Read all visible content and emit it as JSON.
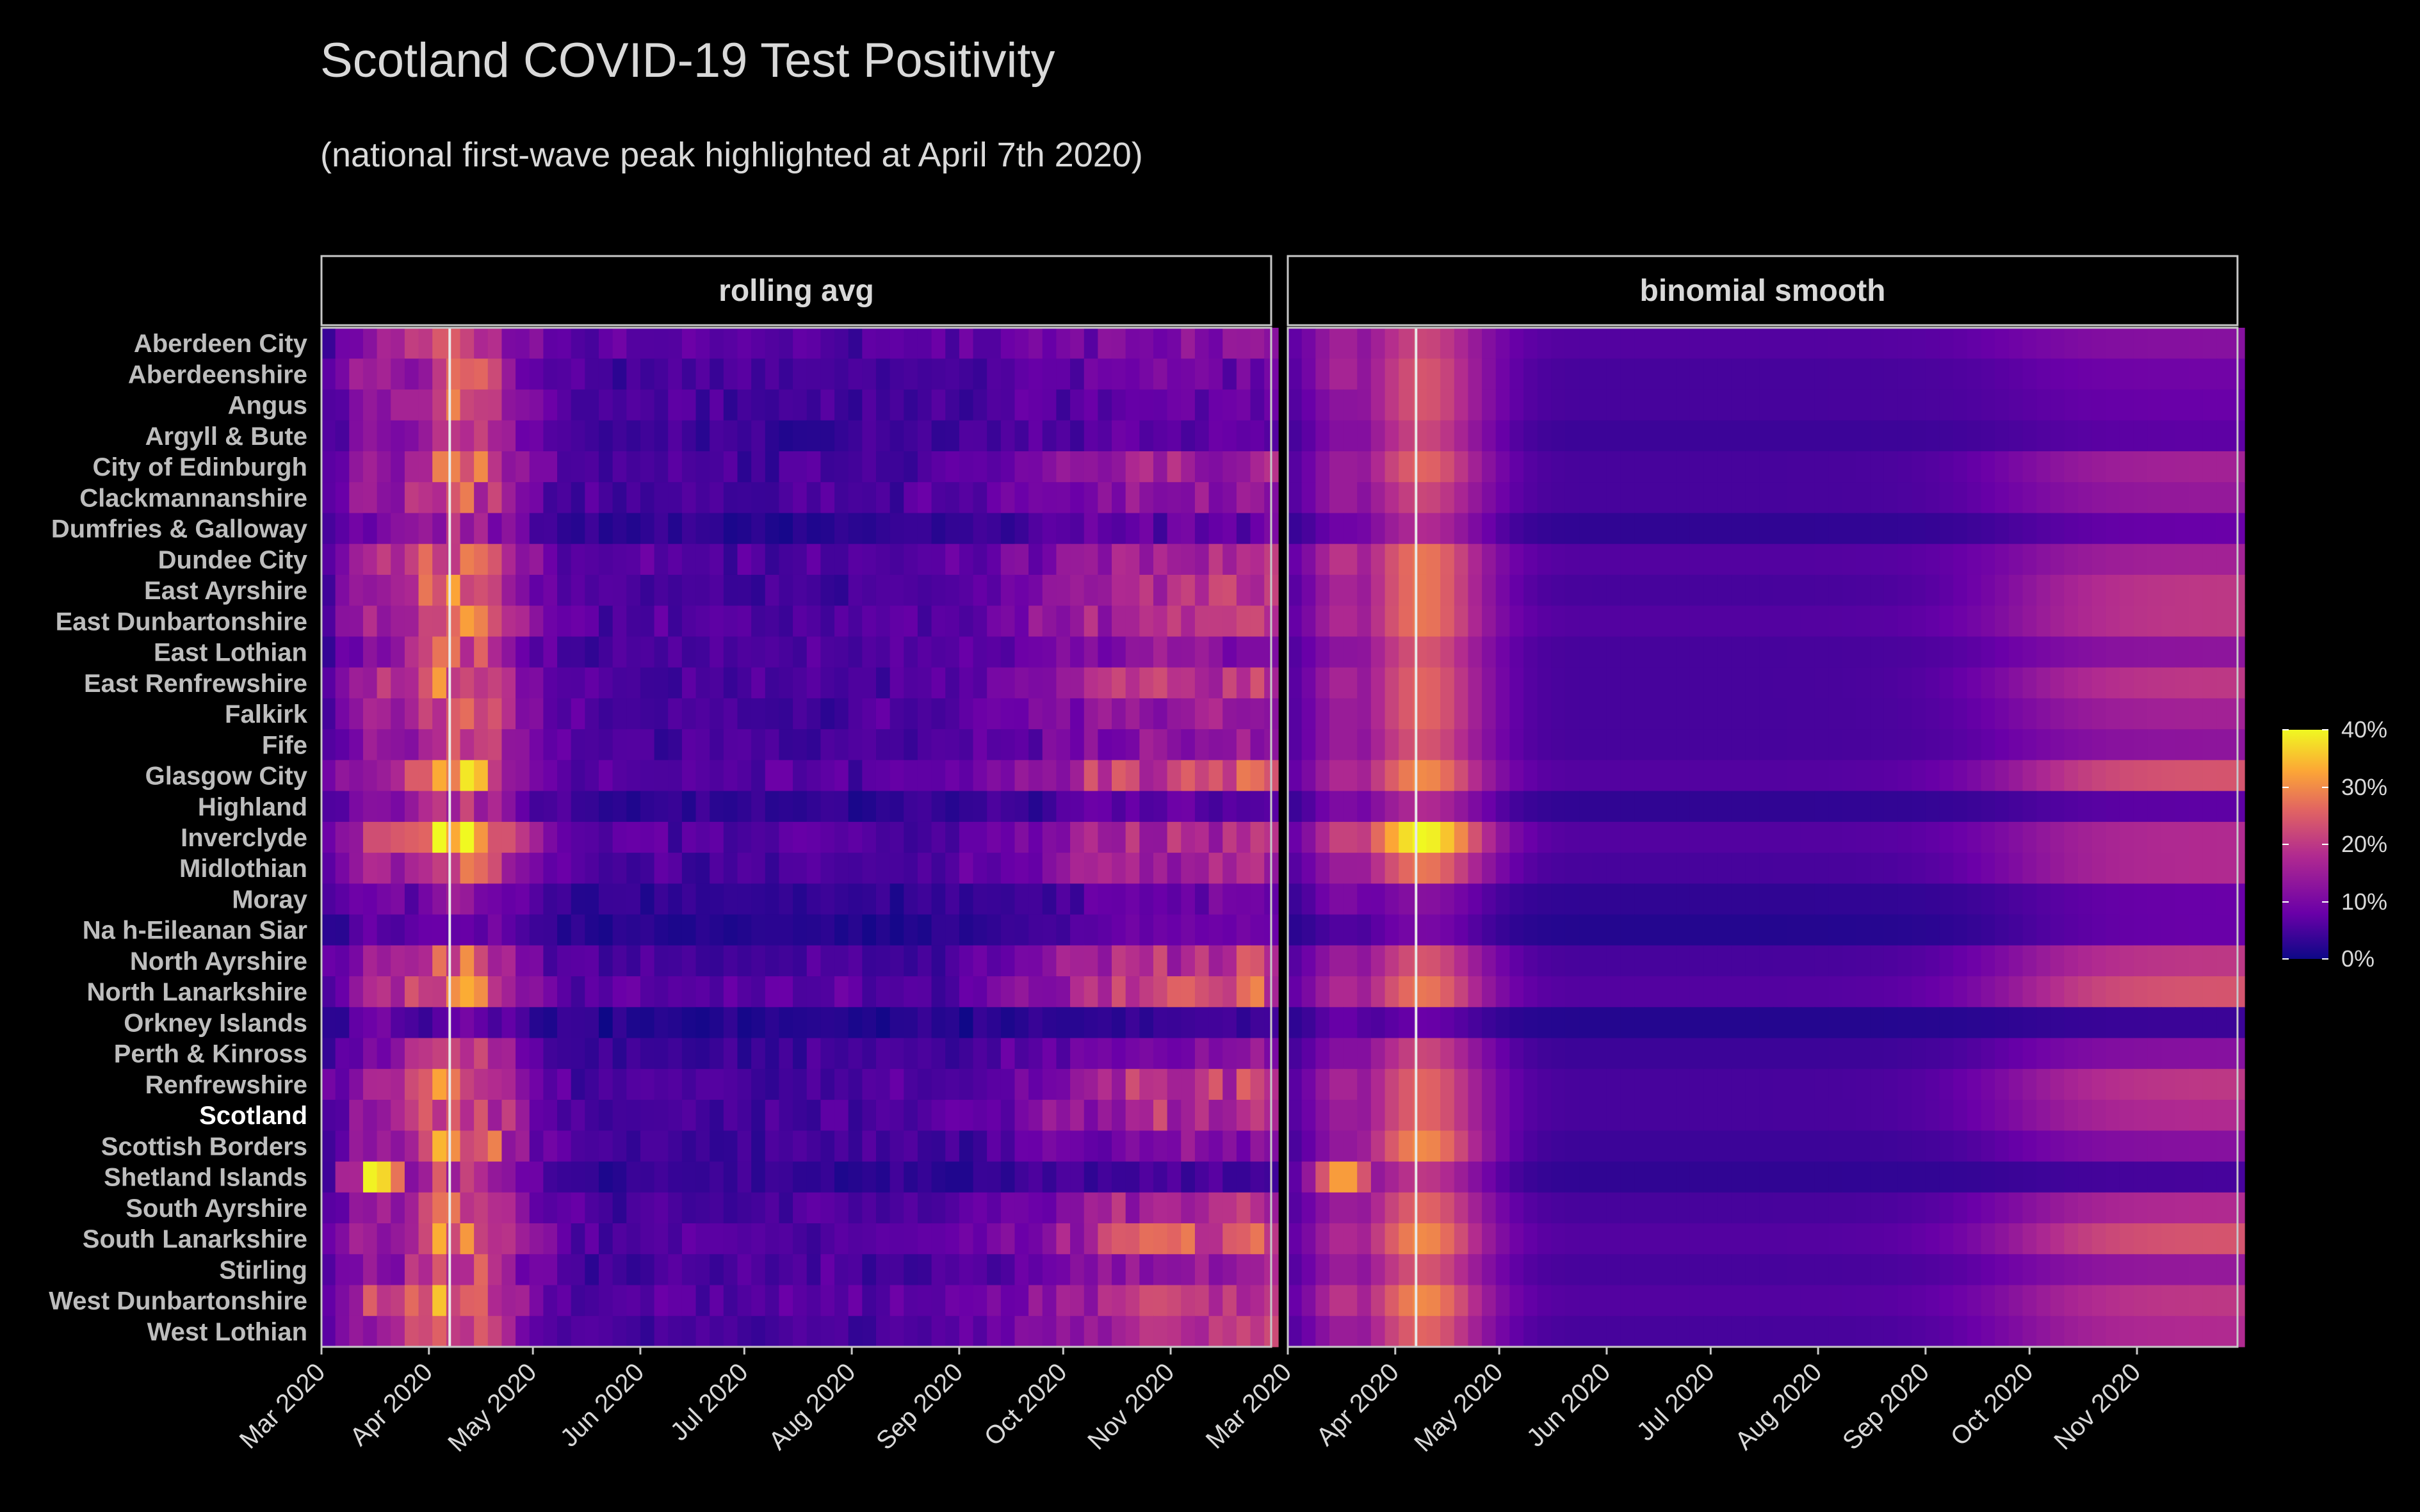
{
  "chart_data": {
    "type": "heatmap",
    "title": "Scotland COVID-19 Test Positivity",
    "subtitle": "(national first-wave peak highlighted at April 7th 2020)",
    "panels": [
      "rolling avg",
      "binomial smooth"
    ],
    "x_ticks": [
      "Mar 2020",
      "Apr 2020",
      "May 2020",
      "Jun 2020",
      "Jul 2020",
      "Aug 2020",
      "Sep 2020",
      "Oct 2020",
      "Nov 2020"
    ],
    "x_range": [
      "2020-03-01",
      "2020-11-30"
    ],
    "highlight_date": "2020-04-07",
    "highlight_row": "Scotland",
    "legend": {
      "labels": [
        "40%",
        "30%",
        "20%",
        "10%",
        "0%"
      ],
      "range": [
        0,
        40
      ],
      "colors": [
        "#0d0887",
        "#6a00a8",
        "#b12a90",
        "#e16462",
        "#fca636",
        "#f0f921"
      ]
    },
    "series": [
      {
        "name": "Aberdeen City",
        "values": {
          "early": 10,
          "peak": 22,
          "summer": 6,
          "autumn": 12
        }
      },
      {
        "name": "Aberdeenshire",
        "values": {
          "early": 12,
          "peak": 24,
          "summer": 5,
          "autumn": 9
        }
      },
      {
        "name": "Angus",
        "values": {
          "early": 8,
          "peak": 24,
          "summer": 5,
          "autumn": 8
        }
      },
      {
        "name": "Argyll & Bute",
        "values": {
          "early": 8,
          "peak": 22,
          "summer": 4,
          "autumn": 7
        }
      },
      {
        "name": "City of Edinburgh",
        "values": {
          "early": 10,
          "peak": 26,
          "summer": 5,
          "autumn": 16
        }
      },
      {
        "name": "Clackmannanshire",
        "values": {
          "early": 10,
          "peak": 22,
          "summer": 5,
          "autumn": 14
        }
      },
      {
        "name": "Dumfries & Galloway",
        "values": {
          "early": 6,
          "peak": 18,
          "summer": 3,
          "autumn": 8
        }
      },
      {
        "name": "Dundee City",
        "values": {
          "early": 14,
          "peak": 28,
          "summer": 6,
          "autumn": 16
        }
      },
      {
        "name": "East Ayrshire",
        "values": {
          "early": 12,
          "peak": 28,
          "summer": 5,
          "autumn": 20
        }
      },
      {
        "name": "East Dunbartonshire",
        "values": {
          "early": 12,
          "peak": 28,
          "summer": 6,
          "autumn": 20
        }
      },
      {
        "name": "East Lothian",
        "values": {
          "early": 8,
          "peak": 24,
          "summer": 5,
          "autumn": 13
        }
      },
      {
        "name": "East Renfrewshire",
        "values": {
          "early": 12,
          "peak": 26,
          "summer": 5,
          "autumn": 20
        }
      },
      {
        "name": "Falkirk",
        "values": {
          "early": 10,
          "peak": 26,
          "summer": 5,
          "autumn": 16
        }
      },
      {
        "name": "Fife",
        "values": {
          "early": 10,
          "peak": 24,
          "summer": 5,
          "autumn": 13
        }
      },
      {
        "name": "Glasgow City",
        "values": {
          "early": 12,
          "peak": 30,
          "summer": 6,
          "autumn": 24
        }
      },
      {
        "name": "Highland",
        "values": {
          "early": 8,
          "peak": 18,
          "summer": 3,
          "autumn": 7
        }
      },
      {
        "name": "Inverclyde",
        "values": {
          "early": 16,
          "peak": 40,
          "summer": 6,
          "autumn": 18
        }
      },
      {
        "name": "Midlothian",
        "values": {
          "early": 10,
          "peak": 28,
          "summer": 5,
          "autumn": 18
        }
      },
      {
        "name": "Moray",
        "values": {
          "early": 8,
          "peak": 12,
          "summer": 3,
          "autumn": 8
        }
      },
      {
        "name": "Na h-Eileanan Siar",
        "values": {
          "early": 4,
          "peak": 10,
          "summer": 2,
          "autumn": 8
        }
      },
      {
        "name": "North Ayrshire",
        "values": {
          "early": 10,
          "peak": 24,
          "summer": 5,
          "autumn": 20
        }
      },
      {
        "name": "North Lanarkshire",
        "values": {
          "early": 12,
          "peak": 28,
          "summer": 6,
          "autumn": 24
        }
      },
      {
        "name": "Orkney Islands",
        "values": {
          "early": 6,
          "peak": 8,
          "summer": 2,
          "autumn": 4
        }
      },
      {
        "name": "Perth & Kinross",
        "values": {
          "early": 8,
          "peak": 22,
          "summer": 4,
          "autumn": 12
        }
      },
      {
        "name": "Renfrewshire",
        "values": {
          "early": 12,
          "peak": 26,
          "summer": 5,
          "autumn": 20
        }
      },
      {
        "name": "Scotland",
        "values": {
          "early": 10,
          "peak": 26,
          "summer": 5,
          "autumn": 18
        }
      },
      {
        "name": "Scottish Borders",
        "values": {
          "early": 10,
          "peak": 30,
          "summer": 4,
          "autumn": 12
        }
      },
      {
        "name": "Shetland Islands",
        "values": {
          "early": 30,
          "peak": 20,
          "summer": 3,
          "autumn": 5
        }
      },
      {
        "name": "South Ayrshire",
        "values": {
          "early": 10,
          "peak": 26,
          "summer": 5,
          "autumn": 18
        }
      },
      {
        "name": "South Lanarkshire",
        "values": {
          "early": 12,
          "peak": 30,
          "summer": 6,
          "autumn": 24
        }
      },
      {
        "name": "Stirling",
        "values": {
          "early": 10,
          "peak": 24,
          "summer": 5,
          "autumn": 14
        }
      },
      {
        "name": "West Dunbartonshire",
        "values": {
          "early": 14,
          "peak": 30,
          "summer": 6,
          "autumn": 20
        }
      },
      {
        "name": "West Lothian",
        "values": {
          "early": 10,
          "peak": 26,
          "summer": 5,
          "autumn": 18
        }
      }
    ]
  }
}
